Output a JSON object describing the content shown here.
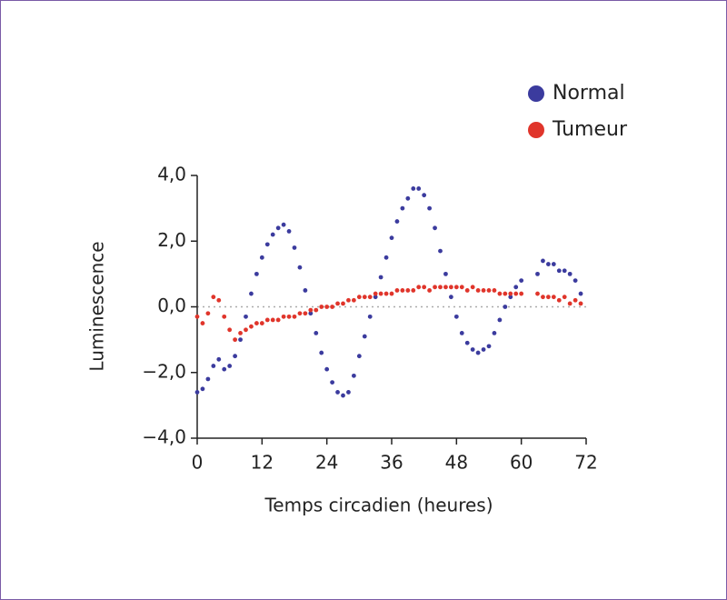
{
  "chart_data": {
    "type": "scatter",
    "xlabel": "Temps circadien (heures)",
    "ylabel": "Luminescence",
    "xlim": [
      0,
      72
    ],
    "xticks": [
      0,
      12,
      24,
      36,
      48,
      60,
      72
    ],
    "ylim": [
      -4,
      4
    ],
    "yticks": [
      {
        "value": -4,
        "label": "−4,0"
      },
      {
        "value": -2,
        "label": "−2,0"
      },
      {
        "value": 0,
        "label": "0,0"
      },
      {
        "value": 2,
        "label": "2,0"
      },
      {
        "value": 4,
        "label": "4,0"
      }
    ],
    "legend": "top-right",
    "series": [
      {
        "name": "Normal",
        "color": "#3b3b9e",
        "x": [
          0,
          1,
          2,
          3,
          4,
          5,
          6,
          7,
          8,
          9,
          10,
          11,
          12,
          13,
          14,
          15,
          16,
          17,
          18,
          19,
          20,
          21,
          22,
          23,
          24,
          25,
          26,
          27,
          28,
          29,
          30,
          31,
          32,
          33,
          34,
          35,
          36,
          37,
          38,
          39,
          40,
          41,
          42,
          43,
          44,
          45,
          46,
          47,
          48,
          49,
          50,
          51,
          52,
          53,
          54,
          55,
          56,
          57,
          58,
          59,
          60,
          63,
          64,
          65,
          66,
          67,
          68,
          69,
          70,
          71
        ],
        "values": [
          -2.6,
          -2.5,
          -2.2,
          -1.8,
          -1.6,
          -1.9,
          -1.8,
          -1.5,
          -1.0,
          -0.3,
          0.4,
          1.0,
          1.5,
          1.9,
          2.2,
          2.4,
          2.5,
          2.3,
          1.8,
          1.2,
          0.5,
          -0.2,
          -0.8,
          -1.4,
          -1.9,
          -2.3,
          -2.6,
          -2.7,
          -2.6,
          -2.1,
          -1.5,
          -0.9,
          -0.3,
          0.3,
          0.9,
          1.5,
          2.1,
          2.6,
          3.0,
          3.3,
          3.6,
          3.6,
          3.4,
          3.0,
          2.4,
          1.7,
          1.0,
          0.3,
          -0.3,
          -0.8,
          -1.1,
          -1.3,
          -1.4,
          -1.3,
          -1.2,
          -0.8,
          -0.4,
          0.0,
          0.3,
          0.6,
          0.8,
          1.0,
          1.4,
          1.3,
          1.3,
          1.1,
          1.1,
          1.0,
          0.8,
          0.4
        ]
      },
      {
        "name": "Tumeur",
        "color": "#e0352b",
        "x": [
          0,
          1,
          2,
          3,
          4,
          5,
          6,
          7,
          8,
          9,
          10,
          11,
          12,
          13,
          14,
          15,
          16,
          17,
          18,
          19,
          20,
          21,
          22,
          23,
          24,
          25,
          26,
          27,
          28,
          29,
          30,
          31,
          32,
          33,
          34,
          35,
          36,
          37,
          38,
          39,
          40,
          41,
          42,
          43,
          44,
          45,
          46,
          47,
          48,
          49,
          50,
          51,
          52,
          53,
          54,
          55,
          56,
          57,
          58,
          59,
          60,
          63,
          64,
          65,
          66,
          67,
          68,
          69,
          70,
          71
        ],
        "values": [
          -0.3,
          -0.5,
          -0.2,
          0.3,
          0.2,
          -0.3,
          -0.7,
          -1.0,
          -0.8,
          -0.7,
          -0.6,
          -0.5,
          -0.5,
          -0.4,
          -0.4,
          -0.4,
          -0.3,
          -0.3,
          -0.3,
          -0.2,
          -0.2,
          -0.1,
          -0.1,
          0.0,
          0.0,
          0.0,
          0.1,
          0.1,
          0.2,
          0.2,
          0.3,
          0.3,
          0.3,
          0.4,
          0.4,
          0.4,
          0.4,
          0.5,
          0.5,
          0.5,
          0.5,
          0.6,
          0.6,
          0.5,
          0.6,
          0.6,
          0.6,
          0.6,
          0.6,
          0.6,
          0.5,
          0.6,
          0.5,
          0.5,
          0.5,
          0.5,
          0.4,
          0.4,
          0.4,
          0.4,
          0.4,
          0.4,
          0.3,
          0.3,
          0.3,
          0.2,
          0.3,
          0.1,
          0.2,
          0.1
        ]
      }
    ]
  }
}
